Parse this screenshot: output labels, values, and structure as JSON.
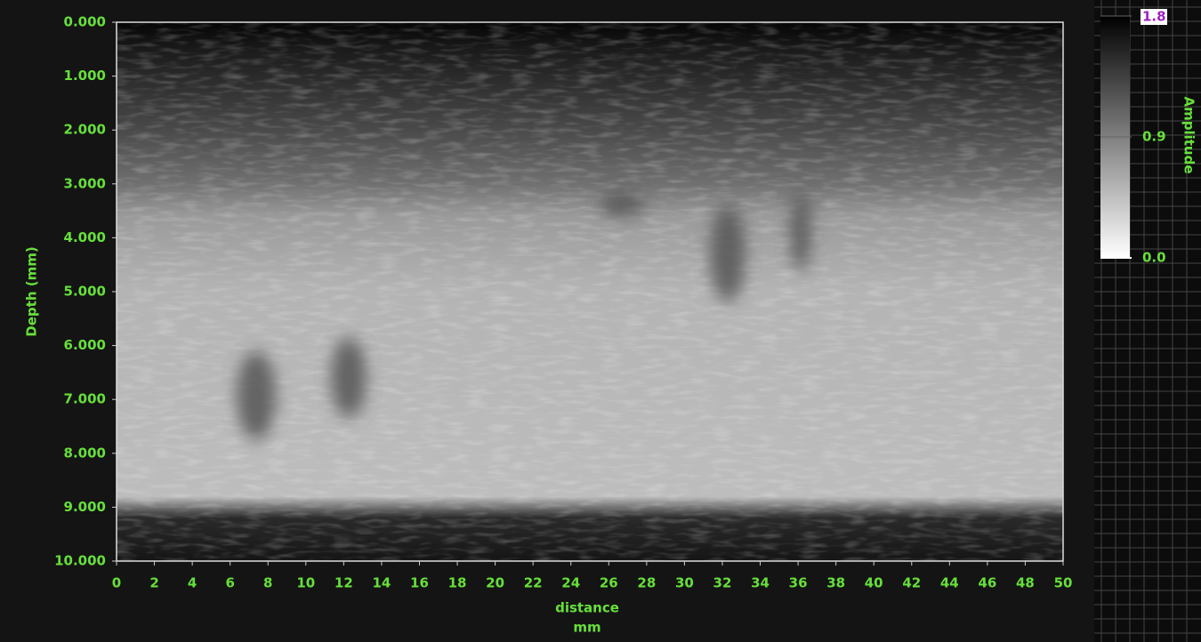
{
  "chart_data": {
    "type": "heatmap",
    "xlabel": "distance",
    "xunit": "mm",
    "ylabel": "Depth (mm)",
    "xlim": [
      0,
      50
    ],
    "xticks": [
      0,
      2,
      4,
      6,
      8,
      10,
      12,
      14,
      16,
      18,
      20,
      22,
      24,
      26,
      28,
      30,
      32,
      34,
      36,
      38,
      40,
      42,
      44,
      46,
      48,
      50
    ],
    "ylim": [
      10,
      0
    ],
    "yticks": [
      {
        "value": 0,
        "label": "0.000"
      },
      {
        "value": 1,
        "label": "1.000"
      },
      {
        "value": 2,
        "label": "2.000"
      },
      {
        "value": 3,
        "label": "3.000"
      },
      {
        "value": 4,
        "label": "4.000"
      },
      {
        "value": 5,
        "label": "5.000"
      },
      {
        "value": 6,
        "label": "6.000"
      },
      {
        "value": 7,
        "label": "7.000"
      },
      {
        "value": 8,
        "label": "8.000"
      },
      {
        "value": 9,
        "label": "9.000"
      },
      {
        "value": 10,
        "label": "10.000"
      }
    ],
    "colorbar": {
      "label": "Amplitude",
      "lim": [
        0,
        1.8
      ],
      "colors": [
        "#ffffff",
        "#000000"
      ],
      "ticks": [
        {
          "value": 0,
          "label": "0.0"
        },
        {
          "value": 0.9,
          "label": "0.9"
        },
        {
          "value": 1.8,
          "label": "1.8"
        }
      ]
    }
  }
}
